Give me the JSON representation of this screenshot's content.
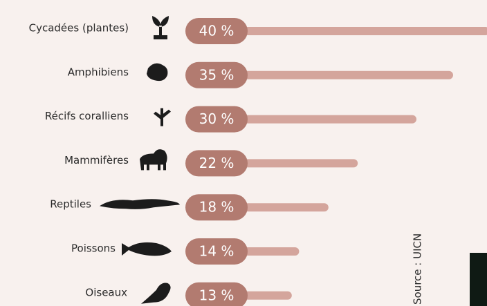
{
  "chart_data": {
    "type": "bar",
    "categories": [
      "Cycadées (plantes)",
      "Amphibiens",
      "Récifs coralliens",
      "Mammifères",
      "Reptiles",
      "Poissons",
      "Oiseaux"
    ],
    "values": [
      40,
      35,
      30,
      22,
      18,
      14,
      13
    ],
    "value_labels": [
      "40 %",
      "35 %",
      "30 %",
      "22 %",
      "18 %",
      "14 %",
      "13 %"
    ],
    "color": "#d4a59c",
    "label_color": "#b27b70",
    "source": "Source : UICN"
  }
}
